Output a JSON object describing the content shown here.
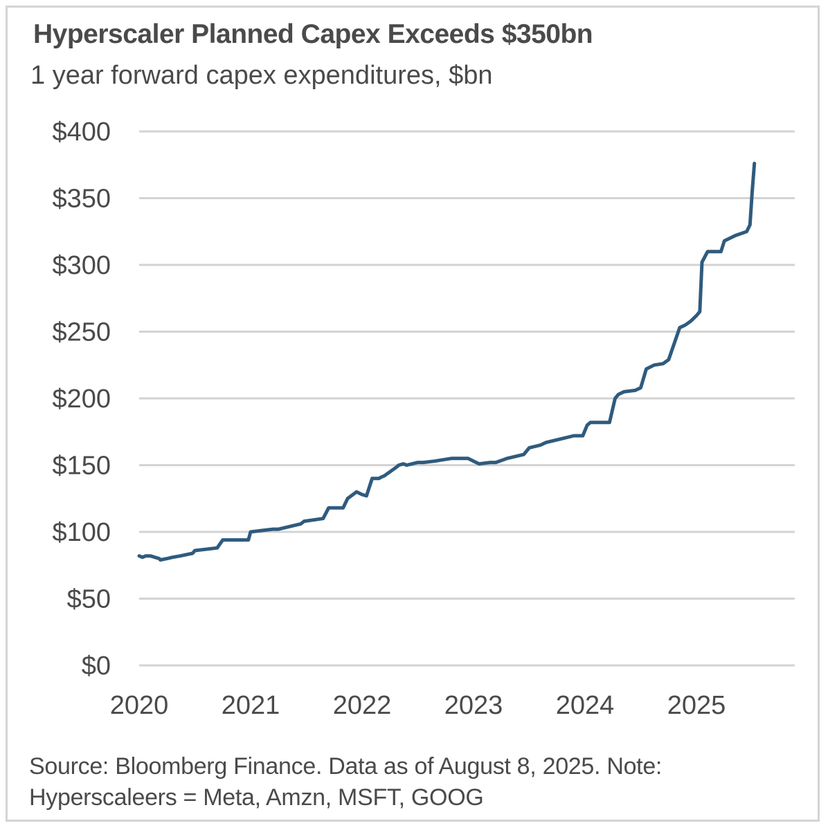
{
  "chart_data": {
    "type": "line",
    "title": "Hyperscaler Planned Capex Exceeds $350bn",
    "subtitle": "1 year forward capex expenditures, $bn",
    "x_tick_labels": [
      "2020",
      "2021",
      "2022",
      "2023",
      "2024",
      "2025"
    ],
    "y_tick_labels": [
      "$0",
      "$50",
      "$100",
      "$150",
      "$200",
      "$250",
      "$300",
      "$350",
      "$400"
    ],
    "y_ticks": [
      0,
      50,
      100,
      150,
      200,
      250,
      300,
      350,
      400
    ],
    "xlim": [
      2020.0,
      2025.9
    ],
    "ylim": [
      0,
      400
    ],
    "grid": true,
    "line_color": "#2f5b7e",
    "series": [
      {
        "name": "",
        "x": [
          2020.0,
          2020.03,
          2020.06,
          2020.1,
          2020.18,
          2020.19,
          2020.25,
          2020.3,
          2020.37,
          2020.48,
          2020.5,
          2020.7,
          2020.75,
          2020.98,
          2021.0,
          2021.2,
          2021.25,
          2021.45,
          2021.48,
          2021.65,
          2021.7,
          2021.83,
          2021.87,
          2021.95,
          2022.0,
          2022.04,
          2022.09,
          2022.15,
          2022.17,
          2022.2,
          2022.3,
          2022.33,
          2022.37,
          2022.4,
          2022.5,
          2022.55,
          2022.65,
          2022.8,
          2022.85,
          2022.95,
          2023.0,
          2023.05,
          2023.15,
          2023.2,
          2023.3,
          2023.45,
          2023.5,
          2023.6,
          2023.65,
          2023.8,
          2023.9,
          2023.98,
          2024.02,
          2024.05,
          2024.1,
          2024.22,
          2024.27,
          2024.3,
          2024.35,
          2024.45,
          2024.5,
          2024.55,
          2024.62,
          2024.7,
          2024.75,
          2024.85,
          2024.9,
          2024.95,
          2025.0,
          2025.03,
          2025.05,
          2025.1,
          2025.18,
          2025.22,
          2025.25,
          2025.35,
          2025.45,
          2025.48,
          2025.5,
          2025.52
        ],
        "y": [
          82,
          81,
          82,
          82,
          80,
          79,
          80,
          81,
          82,
          84,
          86,
          88,
          94,
          94,
          100,
          102,
          102,
          106,
          108,
          110,
          118,
          118,
          125,
          130,
          128,
          127,
          140,
          140,
          141,
          142,
          148,
          150,
          151,
          150,
          152,
          152,
          153,
          155,
          155,
          155,
          153,
          151,
          152,
          152,
          155,
          158,
          163,
          165,
          167,
          170,
          172,
          172,
          180,
          182,
          182,
          182,
          200,
          203,
          205,
          206,
          208,
          222,
          225,
          226,
          229,
          253,
          255,
          258,
          262,
          265,
          302,
          310,
          310,
          310,
          318,
          322,
          325,
          330,
          355,
          376
        ]
      }
    ],
    "source": {
      "line1": "Source: Bloomberg Finance. Data as of August 8, 2025. Note:",
      "line2": "Hyperscaleers = Meta, Amzn, MSFT, GOOG"
    }
  }
}
